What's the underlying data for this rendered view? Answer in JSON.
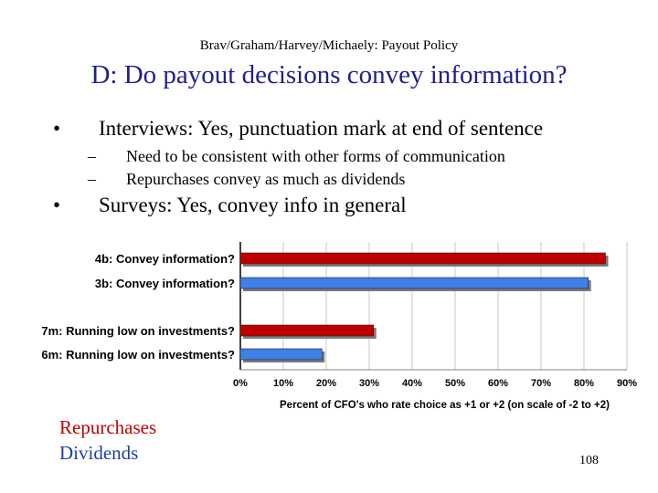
{
  "slide": {
    "header": "Brav/Graham/Harvey/Michaely: Payout Policy",
    "title": "D: Do payout decisions convey information?",
    "bullets": [
      {
        "symbol": "•",
        "text": "Interviews: Yes, punctuation mark at end of sentence",
        "sub": [
          {
            "symbol": "–",
            "text": "Need to be consistent with other forms of communication"
          },
          {
            "symbol": "–",
            "text": "Repurchases convey as much as dividends"
          }
        ]
      },
      {
        "symbol": "•",
        "text": "Surveys: Yes, convey info in general"
      }
    ],
    "legend": {
      "repurchases": "Repurchases",
      "dividends": "Dividends"
    },
    "page_number": "108"
  },
  "colors": {
    "repurchases": "#c00000",
    "dividends": "#3f7fe8",
    "title": "#1f1f8f"
  },
  "chart_data": {
    "type": "bar",
    "orientation": "horizontal",
    "xlabel": "Percent of CFO's who rate choice as +1 or +2 (on scale of -2  to +2)",
    "ylabel": "",
    "xlim": [
      0,
      90
    ],
    "ticks": [
      "0%",
      "10%",
      "20%",
      "30%",
      "40%",
      "50%",
      "60%",
      "70%",
      "80%",
      "90%"
    ],
    "grid": true,
    "categories": [
      "4b: Convey information?",
      "3b: Convey information?",
      "7m: Running low on investments?",
      "6m: Running low on investments?"
    ],
    "values": [
      85,
      81,
      31,
      19
    ],
    "series_type": [
      "repurchases",
      "dividends",
      "repurchases",
      "dividends"
    ]
  }
}
